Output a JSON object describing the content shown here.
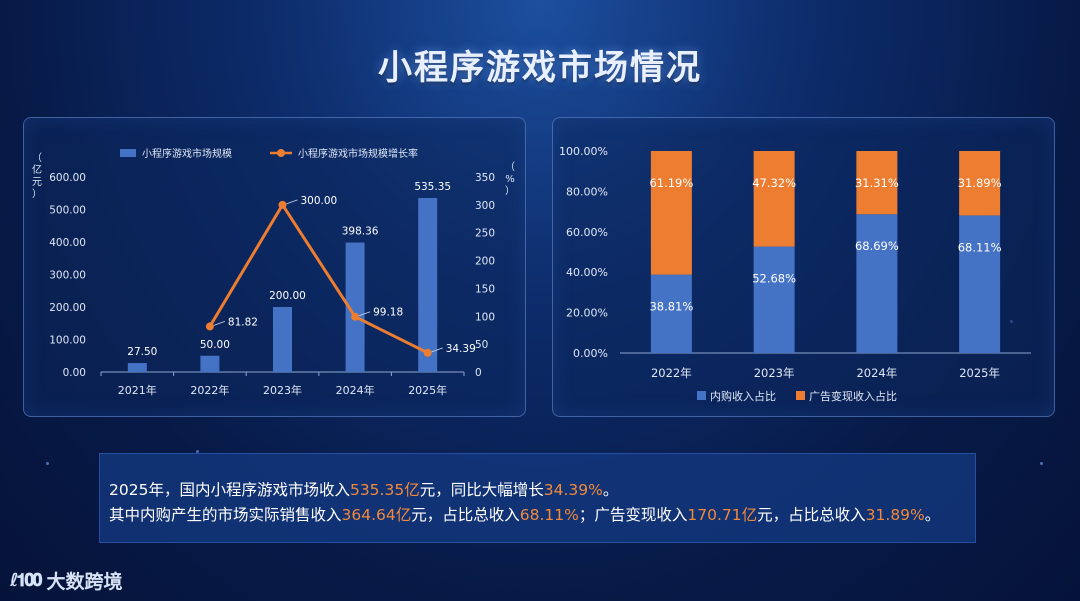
{
  "page": {
    "title": "小程序游戏市场情况",
    "logo_mark": "ℓ𝟏𝟎𝟎",
    "logo_text": "大数跨境"
  },
  "colors": {
    "blue": "#4472c4",
    "orange": "#ed7d31",
    "highlight": "#f08a3a"
  },
  "chart_data": [
    {
      "type": "bar+line",
      "categories": [
        "2021年",
        "2022年",
        "2023年",
        "2024年",
        "2025年"
      ],
      "series": [
        {
          "name": "小程序游戏市场规模",
          "type": "bar",
          "axis": "left",
          "values": [
            27.5,
            50.0,
            200.0,
            398.36,
            535.35
          ],
          "labels": [
            "27.50",
            "50.00",
            "200.00",
            "398.36",
            "535.35"
          ]
        },
        {
          "name": "小程序游戏市场规模增长率",
          "type": "line",
          "axis": "right",
          "values": [
            null,
            81.82,
            300.0,
            99.18,
            34.39
          ],
          "labels": [
            "",
            "81.82",
            "300.00",
            "99.18",
            "34.39"
          ]
        }
      ],
      "left_axis": {
        "label": "（亿元）",
        "min": 0,
        "max": 600,
        "ticks": [
          "0.00",
          "100.00",
          "200.00",
          "300.00",
          "400.00",
          "500.00",
          "600.00"
        ]
      },
      "right_axis": {
        "label": "（%）",
        "min": 0,
        "max": 350,
        "ticks": [
          "0",
          "50",
          "100",
          "150",
          "200",
          "250",
          "300",
          "350"
        ]
      },
      "legend_position": "top"
    },
    {
      "type": "stacked-bar",
      "categories": [
        "2022年",
        "2023年",
        "2024年",
        "2025年"
      ],
      "series": [
        {
          "name": "内购收入占比",
          "values": [
            38.81,
            52.68,
            68.69,
            68.11
          ],
          "labels": [
            "38.81%",
            "52.68%",
            "68.69%",
            "68.11%"
          ]
        },
        {
          "name": "广告变现收入占比",
          "values": [
            61.19,
            47.32,
            31.31,
            31.89
          ],
          "labels": [
            "61.19%",
            "47.32%",
            "31.31%",
            "31.89%"
          ]
        }
      ],
      "y_axis": {
        "min": 0,
        "max": 100,
        "ticks": [
          "0.00%",
          "20.00%",
          "40.00%",
          "60.00%",
          "80.00%",
          "100.00%"
        ]
      },
      "legend_position": "bottom"
    }
  ],
  "summary": {
    "line1": {
      "p1": "2025年，国内小程序游戏市场收入",
      "v1": "535.35亿",
      "p2": "元，同比大幅增长",
      "v2": "34.39%",
      "p3": "。"
    },
    "line2": {
      "p1": "其中内购产生的市场实际销售收入",
      "v1": "364.64亿",
      "p2": "元，占比总收入",
      "v2": "68.11%",
      "p3": "；广告变现收入",
      "v3": "170.71亿",
      "p4": "元，占比总收入",
      "v4": "31.89%",
      "p5": "。"
    }
  }
}
